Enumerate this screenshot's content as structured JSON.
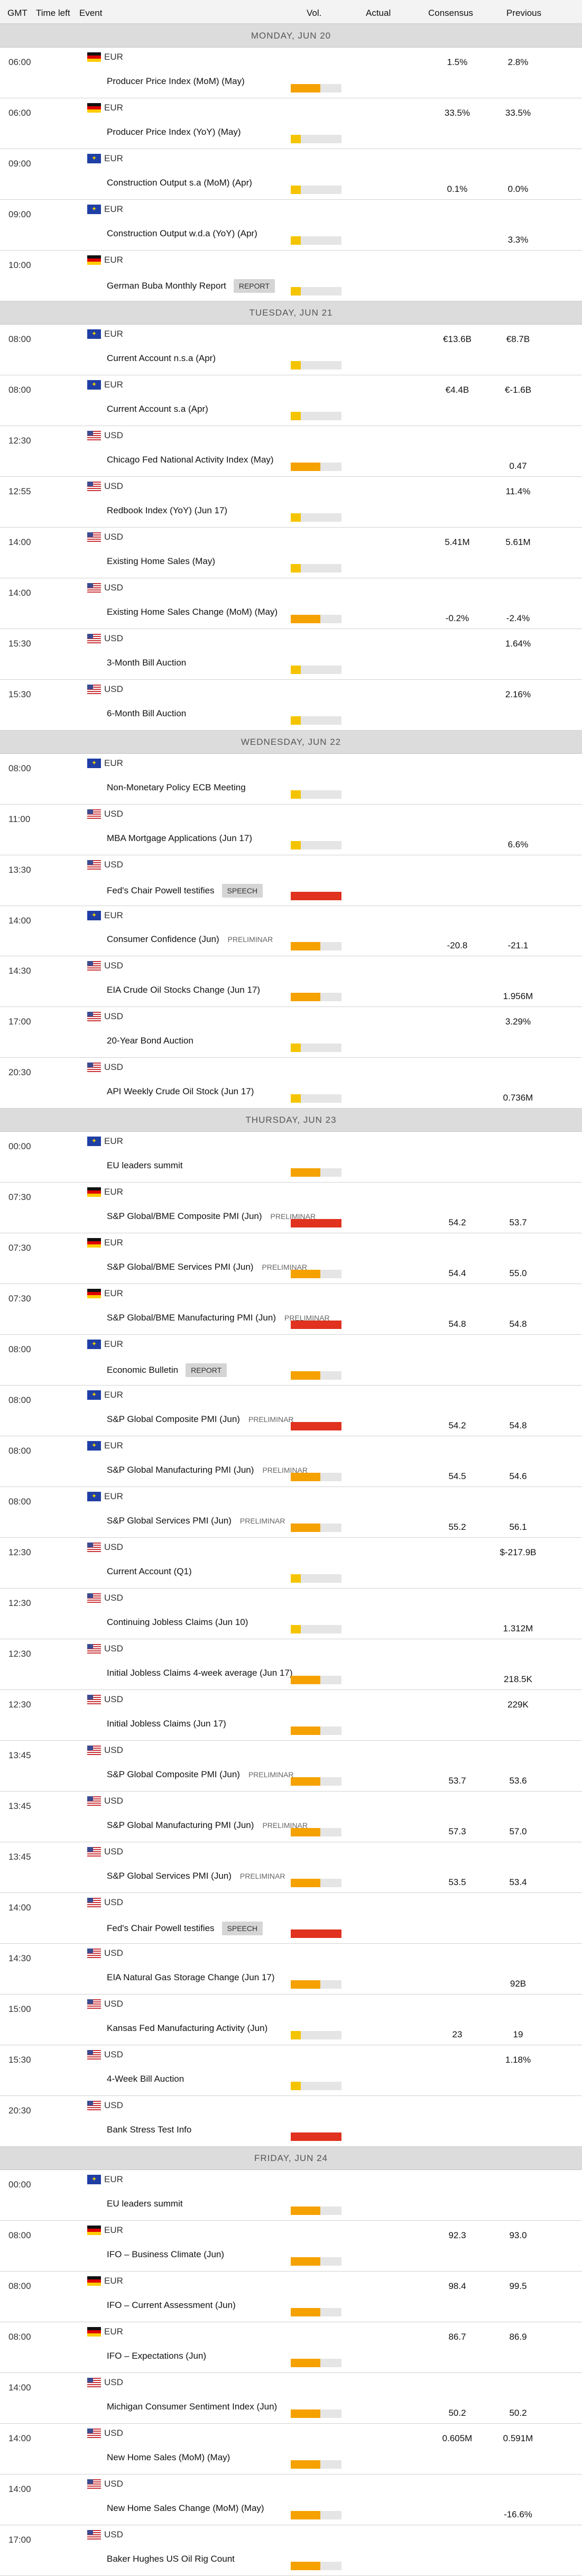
{
  "header": {
    "gmt": "GMT",
    "time_left": "Time left",
    "event": "Event",
    "vol": "Vol.",
    "actual": "Actual",
    "consensus": "Consensus",
    "previous": "Previous"
  },
  "colors": {
    "low": "#f5c400",
    "medium": "#f5a100",
    "high": "#e0321e",
    "bar_bg": "#e5e5e5"
  },
  "days": [
    {
      "label": "MONDAY, JUN 20",
      "events": [
        {
          "time": "06:00",
          "currency": "EUR",
          "flag": "de",
          "title": "Producer Price Index (MoM) (May)",
          "importance": "medium",
          "consensus": "1.5%",
          "previous": "2.8%",
          "values_row": "top"
        },
        {
          "time": "06:00",
          "currency": "EUR",
          "flag": "de",
          "title": "Producer Price Index (YoY) (May)",
          "importance": "low",
          "consensus": "33.5%",
          "previous": "33.5%",
          "values_row": "top"
        },
        {
          "time": "09:00",
          "currency": "EUR",
          "flag": "eu",
          "title": "Construction Output s.a (MoM) (Apr)",
          "importance": "low",
          "consensus": "0.1%",
          "previous": "0.0%",
          "values_row": "bottom"
        },
        {
          "time": "09:00",
          "currency": "EUR",
          "flag": "eu",
          "title": "Construction Output w.d.a (YoY) (Apr)",
          "importance": "low",
          "previous": "3.3%",
          "values_row": "bottom"
        },
        {
          "time": "10:00",
          "currency": "EUR",
          "flag": "de",
          "title": "German Buba Monthly Report",
          "tag": "REPORT",
          "importance": "low",
          "values_row": "bottom"
        }
      ]
    },
    {
      "label": "TUESDAY, JUN 21",
      "events": [
        {
          "time": "08:00",
          "currency": "EUR",
          "flag": "eu",
          "title": "Current Account n.s.a (Apr)",
          "importance": "low",
          "consensus": "€13.6B",
          "previous": "€8.7B",
          "values_row": "top"
        },
        {
          "time": "08:00",
          "currency": "EUR",
          "flag": "eu",
          "title": "Current Account s.a (Apr)",
          "importance": "low",
          "consensus": "€4.4B",
          "previous": "€-1.6B",
          "values_row": "top"
        },
        {
          "time": "12:30",
          "currency": "USD",
          "flag": "us",
          "title": "Chicago Fed National Activity Index (May)",
          "importance": "medium",
          "previous": "0.47",
          "values_row": "bottom"
        },
        {
          "time": "12:55",
          "currency": "USD",
          "flag": "us",
          "title": "Redbook Index (YoY) (Jun 17)",
          "importance": "low",
          "previous": "11.4%",
          "values_row": "top"
        },
        {
          "time": "14:00",
          "currency": "USD",
          "flag": "us",
          "title": "Existing Home Sales (May)",
          "importance": "low",
          "consensus": "5.41M",
          "previous": "5.61M",
          "values_row": "top"
        },
        {
          "time": "14:00",
          "currency": "USD",
          "flag": "us",
          "title": "Existing Home Sales Change (MoM) (May)",
          "importance": "medium",
          "consensus": "-0.2%",
          "previous": "-2.4%",
          "values_row": "bottom"
        },
        {
          "time": "15:30",
          "currency": "USD",
          "flag": "us",
          "title": "3-Month Bill Auction",
          "importance": "low",
          "previous": "1.64%",
          "values_row": "top"
        },
        {
          "time": "15:30",
          "currency": "USD",
          "flag": "us",
          "title": "6-Month Bill Auction",
          "importance": "low",
          "previous": "2.16%",
          "values_row": "top"
        }
      ]
    },
    {
      "label": "WEDNESDAY, JUN 22",
      "events": [
        {
          "time": "08:00",
          "currency": "EUR",
          "flag": "eu",
          "title": "Non-Monetary Policy ECB Meeting",
          "importance": "low",
          "values_row": "bottom"
        },
        {
          "time": "11:00",
          "currency": "USD",
          "flag": "us",
          "title": "MBA Mortgage Applications (Jun 17)",
          "importance": "low",
          "previous": "6.6%",
          "values_row": "bottom"
        },
        {
          "time": "13:30",
          "currency": "USD",
          "flag": "us",
          "title": "Fed's Chair Powell testifies",
          "tag": "SPEECH",
          "importance": "high",
          "values_row": "bottom"
        },
        {
          "time": "14:00",
          "currency": "EUR",
          "flag": "eu",
          "title": "Consumer Confidence (Jun)",
          "prelim": "PRELIMINAR",
          "importance": "medium",
          "consensus": "-20.8",
          "previous": "-21.1",
          "values_row": "bottom"
        },
        {
          "time": "14:30",
          "currency": "USD",
          "flag": "us",
          "title": "EIA Crude Oil Stocks Change (Jun 17)",
          "importance": "medium",
          "previous": "1.956M",
          "values_row": "bottom"
        },
        {
          "time": "17:00",
          "currency": "USD",
          "flag": "us",
          "title": "20-Year Bond Auction",
          "importance": "low",
          "previous": "3.29%",
          "values_row": "top"
        },
        {
          "time": "20:30",
          "currency": "USD",
          "flag": "us",
          "title": "API Weekly Crude Oil Stock (Jun 17)",
          "importance": "low",
          "previous": "0.736M",
          "values_row": "bottom"
        }
      ]
    },
    {
      "label": "THURSDAY, JUN 23",
      "events": [
        {
          "time": "00:00",
          "currency": "EUR",
          "flag": "eu",
          "title": "EU leaders summit",
          "importance": "medium",
          "values_row": "bottom"
        },
        {
          "time": "07:30",
          "currency": "EUR",
          "flag": "de",
          "title": "S&P Global/BME Composite PMI (Jun)",
          "prelim": "PRELIMINAR",
          "importance": "high",
          "consensus": "54.2",
          "previous": "53.7",
          "values_row": "bottom"
        },
        {
          "time": "07:30",
          "currency": "EUR",
          "flag": "de",
          "title": "S&P Global/BME Services PMI (Jun)",
          "prelim": "PRELIMINAR",
          "importance": "medium",
          "consensus": "54.4",
          "previous": "55.0",
          "values_row": "bottom"
        },
        {
          "time": "07:30",
          "currency": "EUR",
          "flag": "de",
          "title": "S&P Global/BME Manufacturing PMI (Jun)",
          "prelim": "PRELIMINAR",
          "importance": "high",
          "consensus": "54.8",
          "previous": "54.8",
          "values_row": "bottom"
        },
        {
          "time": "08:00",
          "currency": "EUR",
          "flag": "eu",
          "title": "Economic Bulletin",
          "tag": "REPORT",
          "importance": "medium",
          "values_row": "bottom"
        },
        {
          "time": "08:00",
          "currency": "EUR",
          "flag": "eu",
          "title": "S&P Global Composite PMI (Jun)",
          "prelim": "PRELIMINAR",
          "importance": "high",
          "consensus": "54.2",
          "previous": "54.8",
          "values_row": "bottom"
        },
        {
          "time": "08:00",
          "currency": "EUR",
          "flag": "eu",
          "title": "S&P Global Manufacturing PMI (Jun)",
          "prelim": "PRELIMINAR",
          "importance": "medium",
          "consensus": "54.5",
          "previous": "54.6",
          "values_row": "bottom"
        },
        {
          "time": "08:00",
          "currency": "EUR",
          "flag": "eu",
          "title": "S&P Global Services PMI (Jun)",
          "prelim": "PRELIMINAR",
          "importance": "medium",
          "consensus": "55.2",
          "previous": "56.1",
          "values_row": "bottom"
        },
        {
          "time": "12:30",
          "currency": "USD",
          "flag": "us",
          "title": "Current Account (Q1)",
          "importance": "low",
          "previous": "$-217.9B",
          "values_row": "top"
        },
        {
          "time": "12:30",
          "currency": "USD",
          "flag": "us",
          "title": "Continuing Jobless Claims (Jun 10)",
          "importance": "low",
          "previous": "1.312M",
          "values_row": "bottom"
        },
        {
          "time": "12:30",
          "currency": "USD",
          "flag": "us",
          "title": "Initial Jobless Claims 4-week average (Jun 17)",
          "importance": "medium",
          "previous": "218.5K",
          "values_row": "bottom"
        },
        {
          "time": "12:30",
          "currency": "USD",
          "flag": "us",
          "title": "Initial Jobless Claims (Jun 17)",
          "importance": "medium",
          "previous": "229K",
          "values_row": "top"
        },
        {
          "time": "13:45",
          "currency": "USD",
          "flag": "us",
          "title": "S&P Global Composite PMI (Jun)",
          "prelim": "PRELIMINAR",
          "importance": "medium",
          "consensus": "53.7",
          "previous": "53.6",
          "values_row": "bottom"
        },
        {
          "time": "13:45",
          "currency": "USD",
          "flag": "us",
          "title": "S&P Global Manufacturing PMI (Jun)",
          "prelim": "PRELIMINAR",
          "importance": "medium",
          "consensus": "57.3",
          "previous": "57.0",
          "values_row": "bottom"
        },
        {
          "time": "13:45",
          "currency": "USD",
          "flag": "us",
          "title": "S&P Global Services PMI (Jun)",
          "prelim": "PRELIMINAR",
          "importance": "medium",
          "consensus": "53.5",
          "previous": "53.4",
          "values_row": "bottom"
        },
        {
          "time": "14:00",
          "currency": "USD",
          "flag": "us",
          "title": "Fed's Chair Powell testifies",
          "tag": "SPEECH",
          "importance": "high",
          "values_row": "bottom"
        },
        {
          "time": "14:30",
          "currency": "USD",
          "flag": "us",
          "title": "EIA Natural Gas Storage Change (Jun 17)",
          "importance": "medium",
          "previous": "92B",
          "values_row": "bottom"
        },
        {
          "time": "15:00",
          "currency": "USD",
          "flag": "us",
          "title": "Kansas Fed Manufacturing Activity (Jun)",
          "importance": "low",
          "consensus": "23",
          "previous": "19",
          "values_row": "bottom"
        },
        {
          "time": "15:30",
          "currency": "USD",
          "flag": "us",
          "title": "4-Week Bill Auction",
          "importance": "low",
          "previous": "1.18%",
          "values_row": "top"
        },
        {
          "time": "20:30",
          "currency": "USD",
          "flag": "us",
          "title": "Bank Stress Test Info",
          "importance": "high",
          "values_row": "top"
        }
      ]
    },
    {
      "label": "FRIDAY, JUN 24",
      "events": [
        {
          "time": "00:00",
          "currency": "EUR",
          "flag": "eu",
          "title": "EU leaders summit",
          "importance": "medium",
          "values_row": "bottom"
        },
        {
          "time": "08:00",
          "currency": "EUR",
          "flag": "de",
          "title": "IFO – Business Climate (Jun)",
          "importance": "medium",
          "consensus": "92.3",
          "previous": "93.0",
          "values_row": "top"
        },
        {
          "time": "08:00",
          "currency": "EUR",
          "flag": "de",
          "title": "IFO – Current Assessment (Jun)",
          "importance": "medium",
          "consensus": "98.4",
          "previous": "99.5",
          "values_row": "top"
        },
        {
          "time": "08:00",
          "currency": "EUR",
          "flag": "de",
          "title": "IFO – Expectations (Jun)",
          "importance": "medium",
          "consensus": "86.7",
          "previous": "86.9",
          "values_row": "top"
        },
        {
          "time": "14:00",
          "currency": "USD",
          "flag": "us",
          "title": "Michigan Consumer Sentiment Index (Jun)",
          "importance": "medium",
          "consensus": "50.2",
          "previous": "50.2",
          "values_row": "bottom"
        },
        {
          "time": "14:00",
          "currency": "USD",
          "flag": "us",
          "title": "New Home Sales (MoM) (May)",
          "importance": "medium",
          "consensus": "0.605M",
          "previous": "0.591M",
          "values_row": "top"
        },
        {
          "time": "14:00",
          "currency": "USD",
          "flag": "us",
          "title": "New Home Sales Change (MoM) (May)",
          "importance": "medium",
          "previous": "-16.6%",
          "values_row": "bottom"
        },
        {
          "time": "17:00",
          "currency": "USD",
          "flag": "us",
          "title": "Baker Hughes US Oil Rig Count",
          "importance": "medium",
          "values_row": "bottom"
        }
      ]
    }
  ]
}
